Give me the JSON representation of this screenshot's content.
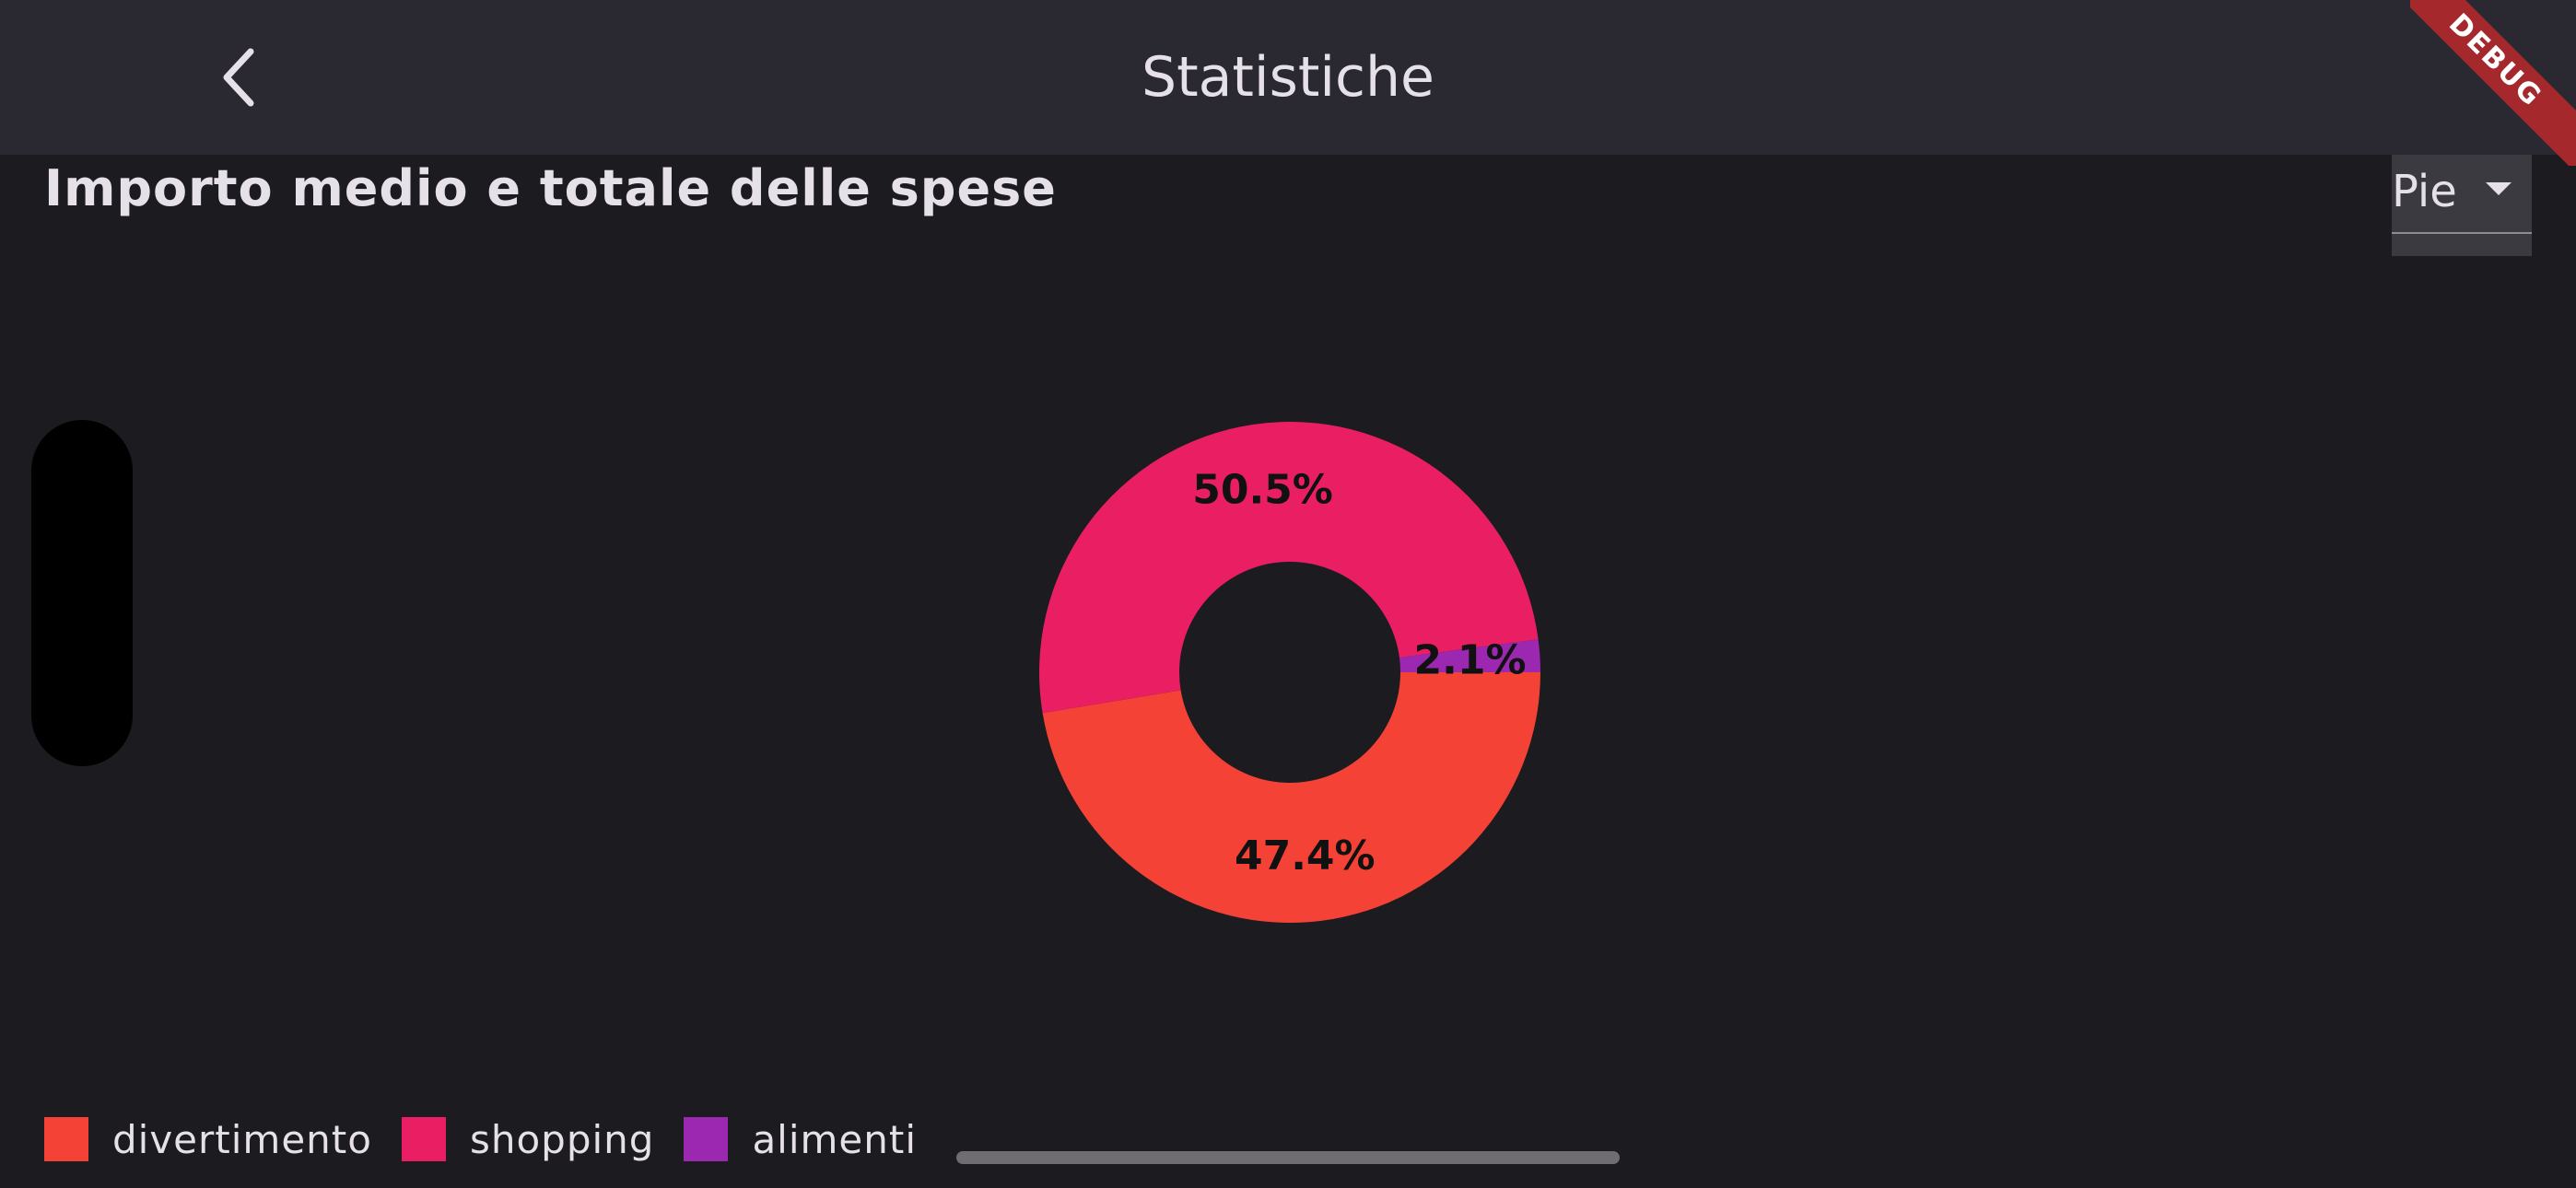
{
  "appbar": {
    "title": "Statistiche",
    "back_icon": "chevron-left-icon"
  },
  "debug_banner": "DEBUG",
  "section": {
    "title": "Importo medio e totale delle spese"
  },
  "chart_type_select": {
    "value": "Pie"
  },
  "chart_data": {
    "type": "pie",
    "title": "",
    "categories": [
      "divertimento",
      "shopping",
      "alimenti"
    ],
    "values": [
      47.4,
      50.5,
      2.1
    ],
    "labels": [
      "47.4%",
      "50.5%",
      "2.1%"
    ],
    "colors": [
      "#f44336",
      "#e91e63",
      "#9c27b0"
    ],
    "donut": true,
    "legend_position": "bottom-left"
  },
  "legend": [
    {
      "label": "divertimento",
      "color": "#f44336"
    },
    {
      "label": "shopping",
      "color": "#e91e63"
    },
    {
      "label": "alimenti",
      "color": "#9c27b0"
    }
  ]
}
